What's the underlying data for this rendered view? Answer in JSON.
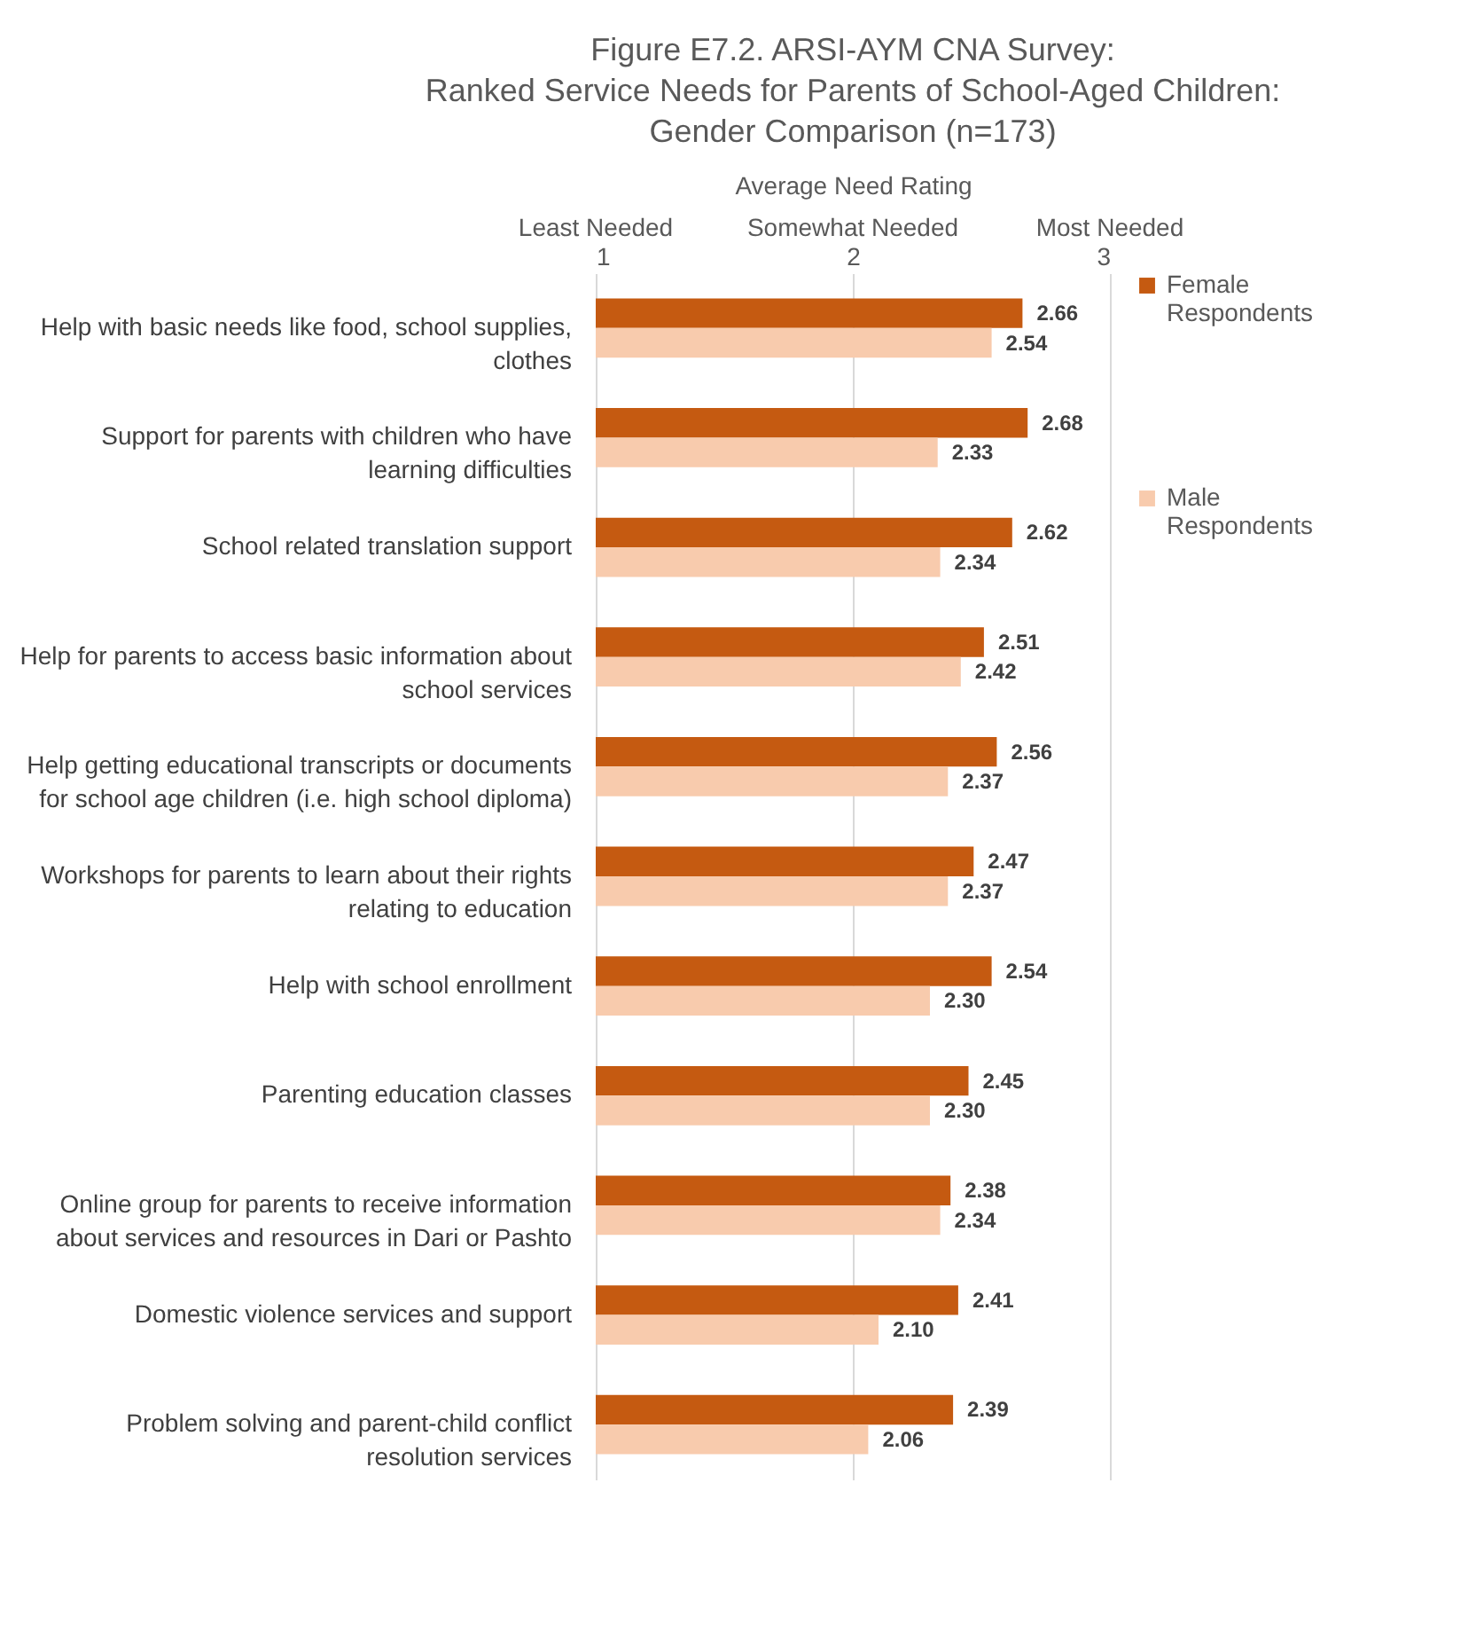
{
  "chart_data": {
    "type": "bar",
    "orientation": "horizontal",
    "title": "Figure E7.2. ARSI-AYM CNA Survey:\nRanked Service Needs for Parents of School-Aged Children:\nGender Comparison (n=173)",
    "xlabel": "Average Need Rating",
    "categories": [
      "Help with basic needs like food, school supplies, clothes",
      "Support for parents with children who have learning difficulties",
      "School related translation support",
      "Help for parents to access basic information about school services",
      "Help getting educational transcripts or documents for school age children (i.e. high school diploma)",
      "Workshops for parents to learn about their rights relating to education",
      "Help with school enrollment",
      "Parenting education classes",
      "Online group for parents to receive information about services and resources in Dari or Pashto",
      "Domestic violence  services and support",
      "Problem solving and parent-child conflict resolution services"
    ],
    "series": [
      {
        "name": "Female Respondents",
        "color": "#c55a11",
        "values": [
          2.66,
          2.68,
          2.62,
          2.51,
          2.56,
          2.47,
          2.54,
          2.45,
          2.38,
          2.41,
          2.39
        ],
        "value_labels": [
          "2.66",
          "2.68",
          "2.62",
          "2.51",
          "2.56",
          "2.47",
          "2.54",
          "2.45",
          "2.38",
          "2.41",
          "2.39"
        ]
      },
      {
        "name": "Male Respondents",
        "color": "#f8cbad",
        "values": [
          2.54,
          2.33,
          2.34,
          2.42,
          2.37,
          2.37,
          2.3,
          2.3,
          2.34,
          2.1,
          2.06
        ],
        "value_labels": [
          "2.54",
          "2.33",
          "2.34",
          "2.42",
          "2.37",
          "2.37",
          "2.30",
          "2.30",
          "2.34",
          "2.10",
          "2.06"
        ]
      }
    ],
    "xlim": [
      1,
      3
    ],
    "xticks": [
      1,
      2,
      3
    ],
    "annotations": [
      "Least Needed",
      "Somewhat Needed",
      "Most Needed"
    ],
    "grid": "x",
    "legend": "right"
  }
}
